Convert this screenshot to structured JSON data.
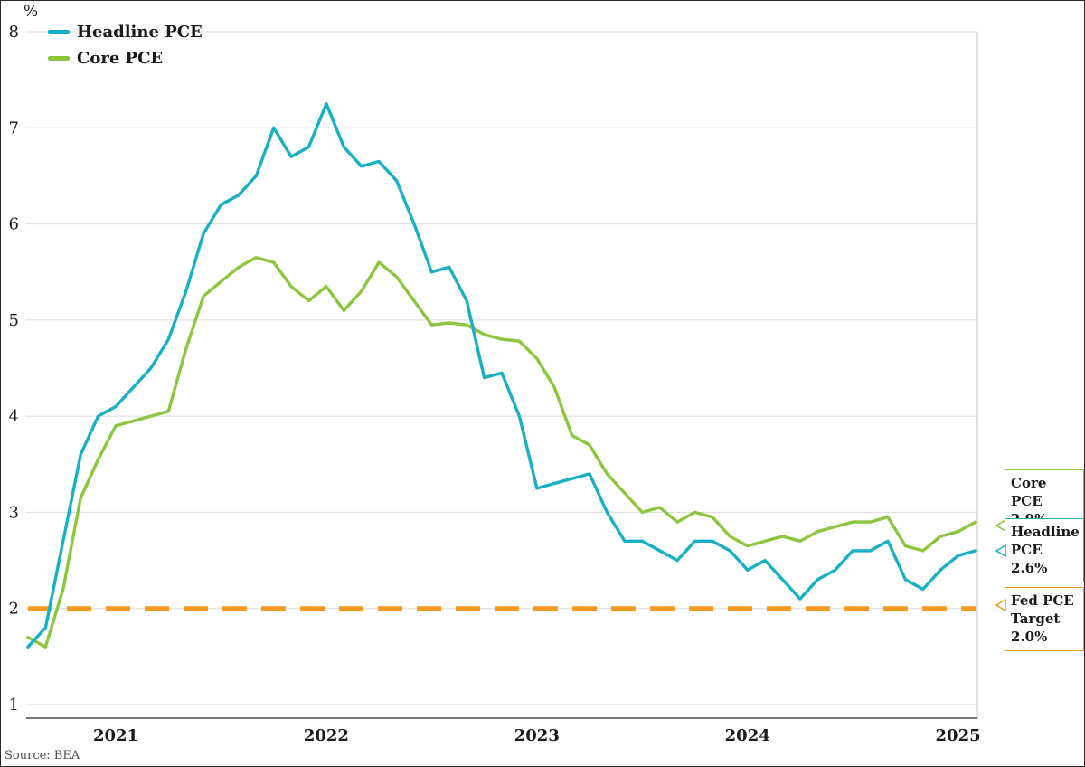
{
  "source": "Source: BEA",
  "legend": [
    {
      "label": "Headline PCE",
      "color": "#17b0c4"
    },
    {
      "label": "Core PCE",
      "color": "#8cc63e"
    }
  ],
  "annotations": [
    {
      "label": "Core PCE",
      "value": "2.9%",
      "color": "#8cc63e"
    },
    {
      "label": "Headline PCE",
      "value": "2.6%",
      "color": "#17b0c4"
    },
    {
      "label": "Fed PCE Target",
      "value": "2.0%",
      "color": "#f5991f"
    }
  ],
  "chart_data": {
    "type": "line",
    "title": "",
    "xlabel": "",
    "ylabel": "%",
    "ylim": [
      1,
      8
    ],
    "grid": "horizontal",
    "legend_position": "top-left",
    "y_ticks": [
      1,
      2,
      3,
      4,
      5,
      6,
      7,
      8
    ],
    "x_ticks": [
      {
        "label": "2021",
        "month_index": 5
      },
      {
        "label": "2022",
        "month_index": 17
      },
      {
        "label": "2023",
        "month_index": 29
      },
      {
        "label": "2024",
        "month_index": 41
      },
      {
        "label": "2025",
        "month_index": 53
      }
    ],
    "months": [
      "2021-01",
      "2021-02",
      "2021-03",
      "2021-04",
      "2021-05",
      "2021-06",
      "2021-07",
      "2021-08",
      "2021-09",
      "2021-10",
      "2021-11",
      "2021-12",
      "2022-01",
      "2022-02",
      "2022-03",
      "2022-04",
      "2022-05",
      "2022-06",
      "2022-07",
      "2022-08",
      "2022-09",
      "2022-10",
      "2022-11",
      "2022-12",
      "2023-01",
      "2023-02",
      "2023-03",
      "2023-04",
      "2023-05",
      "2023-06",
      "2023-07",
      "2023-08",
      "2023-09",
      "2023-10",
      "2023-11",
      "2023-12",
      "2024-01",
      "2024-02",
      "2024-03",
      "2024-04",
      "2024-05",
      "2024-06",
      "2024-07",
      "2024-08",
      "2024-09",
      "2024-10",
      "2024-11",
      "2024-12",
      "2025-01",
      "2025-02",
      "2025-03",
      "2025-04",
      "2025-05",
      "2025-06",
      "2025-07"
    ],
    "series": [
      {
        "name": "Headline PCE",
        "color": "#17b0c4",
        "values": [
          1.6,
          1.8,
          2.7,
          3.6,
          4.0,
          4.1,
          4.3,
          4.5,
          4.8,
          5.3,
          5.9,
          6.2,
          6.3,
          6.5,
          7.0,
          6.7,
          6.8,
          7.25,
          6.8,
          6.6,
          6.65,
          6.45,
          6.0,
          5.5,
          5.55,
          5.2,
          4.4,
          4.45,
          4.0,
          3.25,
          3.3,
          3.35,
          3.4,
          3.0,
          2.7,
          2.7,
          2.6,
          2.5,
          2.7,
          2.7,
          2.6,
          2.4,
          2.5,
          2.3,
          2.1,
          2.3,
          2.4,
          2.6,
          2.6,
          2.7,
          2.3,
          2.2,
          2.4,
          2.55,
          2.6
        ]
      },
      {
        "name": "Core PCE",
        "color": "#8cc63e",
        "values": [
          1.7,
          1.6,
          2.2,
          3.15,
          3.55,
          3.9,
          3.95,
          4.0,
          4.05,
          4.7,
          5.25,
          5.4,
          5.55,
          5.65,
          5.6,
          5.35,
          5.2,
          5.35,
          5.1,
          5.3,
          5.6,
          5.45,
          5.2,
          4.95,
          4.97,
          4.95,
          4.85,
          4.8,
          4.78,
          4.6,
          4.3,
          3.8,
          3.7,
          3.4,
          3.2,
          3.0,
          3.05,
          2.9,
          3.0,
          2.95,
          2.75,
          2.65,
          2.7,
          2.75,
          2.7,
          2.8,
          2.85,
          2.9,
          2.9,
          2.95,
          2.65,
          2.6,
          2.75,
          2.8,
          2.9
        ]
      }
    ],
    "target_line": {
      "name": "Fed PCE Target",
      "value": 2.0,
      "color": "#f5991f",
      "style": "dashed"
    }
  }
}
